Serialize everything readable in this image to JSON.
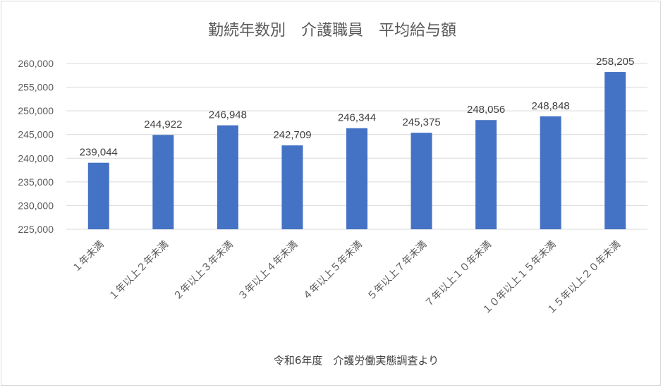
{
  "chart_data": {
    "type": "bar",
    "title": "勤続年数別　介護職員　平均給与額",
    "xlabel": "令和6年度　介護労働実態調査より",
    "ylabel": "",
    "categories": [
      "１年未満",
      "１年以上２年未満",
      "２年以上３年未満",
      "３年以上４年未満",
      "４年以上５年未満",
      "５年以上７年未満",
      "７年以上１０年未満",
      "１０年以上１５年未満",
      "１５年以上２０年未満"
    ],
    "values": [
      239044,
      244922,
      246948,
      242709,
      246344,
      245375,
      248056,
      248848,
      258205
    ],
    "value_labels": [
      "239,044",
      "244,922",
      "246,948",
      "242,709",
      "246,344",
      "245,375",
      "248,056",
      "248,848",
      "258,205"
    ],
    "ylim": [
      225000,
      260000
    ],
    "y_ticks": [
      225000,
      230000,
      235000,
      240000,
      245000,
      250000,
      255000,
      260000
    ],
    "y_tick_labels": [
      "225,000",
      "230,000",
      "235,000",
      "240,000",
      "245,000",
      "250,000",
      "255,000",
      "260,000"
    ],
    "grid": true,
    "legend": "none",
    "bar_color": "#4472c4",
    "grid_color": "#d9d9d9"
  }
}
